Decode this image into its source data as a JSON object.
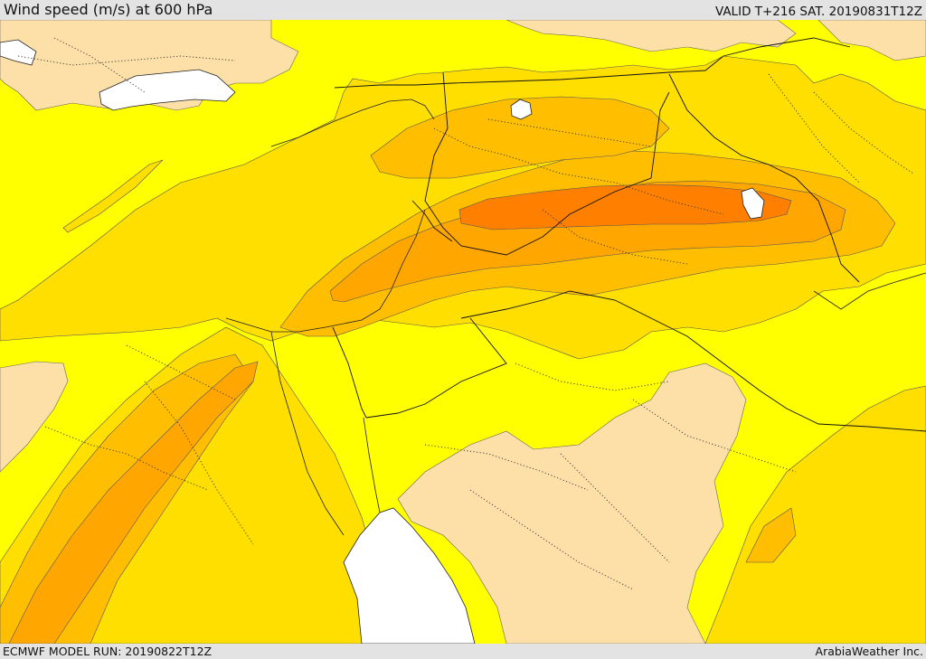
{
  "header": {
    "title": "Wind speed (m/s) at 600 hPa",
    "valid": "VALID T+216 SAT. 20190831T12Z"
  },
  "footer": {
    "model_run": "ECMWF MODEL RUN: 20190822T12Z",
    "credit": "ArabiaWeather Inc."
  },
  "colors": {
    "background": "#e3e3e3",
    "calm": "#fddfa8",
    "level_1": "#ffff00",
    "level_2": "#ffdf00",
    "level_3": "#ffbf00",
    "level_4": "#ffa600",
    "level_5": "#ff8000",
    "water": "#ffffff",
    "country_border": "#111111"
  }
}
